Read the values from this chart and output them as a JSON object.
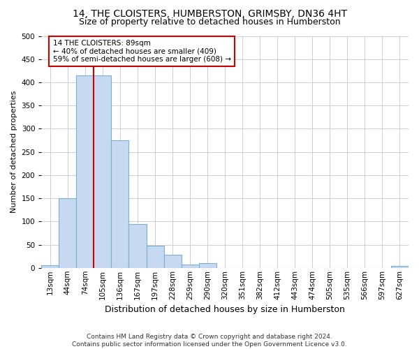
{
  "title": "14, THE CLOISTERS, HUMBERSTON, GRIMSBY, DN36 4HT",
  "subtitle": "Size of property relative to detached houses in Humberston",
  "xlabel": "Distribution of detached houses by size in Humberston",
  "ylabel": "Number of detached properties",
  "footer_line1": "Contains HM Land Registry data © Crown copyright and database right 2024.",
  "footer_line2": "Contains public sector information licensed under the Open Government Licence v3.0.",
  "categories": [
    "13sqm",
    "44sqm",
    "74sqm",
    "105sqm",
    "136sqm",
    "167sqm",
    "197sqm",
    "228sqm",
    "259sqm",
    "290sqm",
    "320sqm",
    "351sqm",
    "382sqm",
    "412sqm",
    "443sqm",
    "474sqm",
    "505sqm",
    "535sqm",
    "566sqm",
    "597sqm",
    "627sqm"
  ],
  "values": [
    5,
    150,
    415,
    415,
    275,
    95,
    48,
    28,
    7,
    10,
    0,
    0,
    0,
    0,
    0,
    0,
    0,
    0,
    0,
    0,
    4
  ],
  "bar_color": "#c6d9f0",
  "bar_edge_color": "#7bafd4",
  "red_line_x": 2.5,
  "annotation_text_line1": "14 THE CLOISTERS: 89sqm",
  "annotation_text_line2": "← 40% of detached houses are smaller (409)",
  "annotation_text_line3": "59% of semi-detached houses are larger (608) →",
  "annotation_box_color": "#ffffff",
  "annotation_box_edge_color": "#cc0000",
  "annotation_text_fontsize": 7.5,
  "ylim": [
    0,
    500
  ],
  "yticks": [
    0,
    50,
    100,
    150,
    200,
    250,
    300,
    350,
    400,
    450,
    500
  ],
  "bg_color": "#ffffff",
  "grid_color": "#c8c8c8",
  "title_fontsize": 10,
  "subtitle_fontsize": 9,
  "xlabel_fontsize": 9,
  "ylabel_fontsize": 8,
  "tick_fontsize": 7.5,
  "footer_fontsize": 6.5
}
